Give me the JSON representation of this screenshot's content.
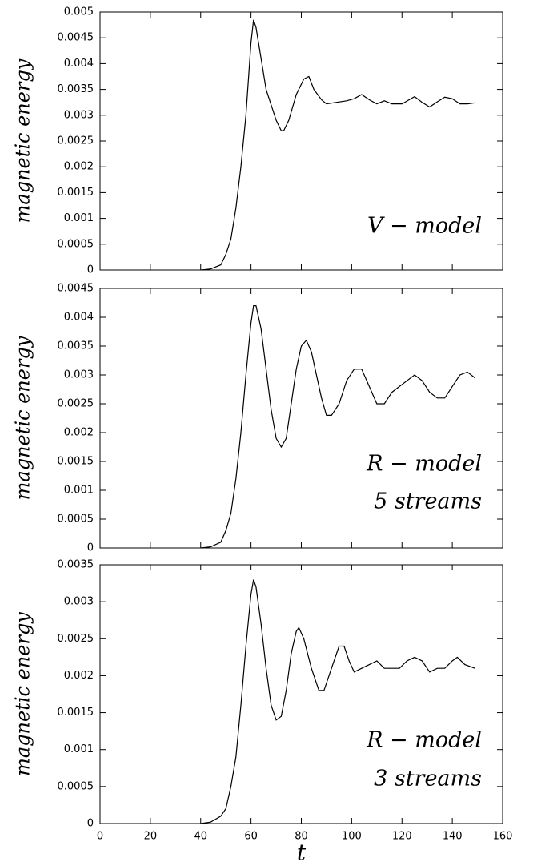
{
  "chart_data": [
    {
      "type": "line",
      "ylabel": "magnetic energy",
      "annotations": [
        "V − model"
      ],
      "xlim": [
        0,
        160
      ],
      "xticks": [
        0,
        20,
        40,
        60,
        80,
        100,
        120,
        140,
        160
      ],
      "ylim": [
        0,
        0.005
      ],
      "yticks": [
        0,
        0.0005,
        0.001,
        0.0015,
        0.002,
        0.0025,
        0.003,
        0.0035,
        0.004,
        0.0045,
        0.005
      ],
      "x": [
        40,
        44,
        48,
        50,
        52,
        54,
        56,
        58,
        60,
        61,
        62,
        64,
        66,
        68,
        70,
        72,
        73,
        75,
        78,
        81,
        83,
        85,
        88,
        90,
        94,
        98,
        101,
        104,
        107,
        110,
        113,
        116,
        120,
        125,
        128,
        131,
        134,
        137,
        140,
        143,
        146,
        149
      ],
      "series": [
        {
          "color": "#000000",
          "values": [
            0,
            2e-05,
            0.0001,
            0.0003,
            0.0006,
            0.0012,
            0.002,
            0.003,
            0.0044,
            0.00485,
            0.0047,
            0.0041,
            0.0035,
            0.0032,
            0.0029,
            0.0027,
            0.0027,
            0.0029,
            0.0034,
            0.0037,
            0.00375,
            0.0035,
            0.0033,
            0.00322,
            0.00325,
            0.00328,
            0.00332,
            0.0034,
            0.0033,
            0.00322,
            0.00328,
            0.00322,
            0.00322,
            0.00336,
            0.00325,
            0.00316,
            0.00326,
            0.00335,
            0.00332,
            0.00322,
            0.00322,
            0.00324
          ]
        }
      ]
    },
    {
      "type": "line",
      "ylabel": "magnetic energy",
      "annotations": [
        "R − model",
        "5 streams"
      ],
      "xlim": [
        0,
        160
      ],
      "xticks": [
        0,
        20,
        40,
        60,
        80,
        100,
        120,
        140,
        160
      ],
      "ylim": [
        0,
        0.0045
      ],
      "yticks": [
        0,
        0.0005,
        0.001,
        0.0015,
        0.002,
        0.0025,
        0.003,
        0.0035,
        0.004,
        0.0045
      ],
      "x": [
        40,
        44,
        48,
        50,
        52,
        54,
        56,
        58,
        60,
        61,
        62,
        64,
        66,
        68,
        70,
        72,
        74,
        76,
        78,
        80,
        82,
        84,
        86,
        88,
        90,
        92,
        95,
        98,
        101,
        104,
        107,
        110,
        113,
        116,
        119,
        122,
        125,
        128,
        131,
        134,
        137,
        140,
        143,
        146,
        149
      ],
      "series": [
        {
          "color": "#000000",
          "values": [
            0,
            2e-05,
            0.0001,
            0.0003,
            0.0006,
            0.0012,
            0.002,
            0.003,
            0.0039,
            0.0042,
            0.0042,
            0.0038,
            0.0031,
            0.0024,
            0.0019,
            0.00175,
            0.0019,
            0.0025,
            0.0031,
            0.0035,
            0.0036,
            0.0034,
            0.003,
            0.0026,
            0.0023,
            0.0023,
            0.0025,
            0.0029,
            0.0031,
            0.0031,
            0.0028,
            0.0025,
            0.0025,
            0.0027,
            0.0028,
            0.0029,
            0.003,
            0.0029,
            0.0027,
            0.0026,
            0.0026,
            0.0028,
            0.003,
            0.00305,
            0.00295
          ]
        }
      ]
    },
    {
      "type": "line",
      "ylabel": "magnetic energy",
      "xlabel": "t",
      "annotations": [
        "R − model",
        "3 streams"
      ],
      "xlim": [
        0,
        160
      ],
      "xticks": [
        0,
        20,
        40,
        60,
        80,
        100,
        120,
        140,
        160
      ],
      "ylim": [
        0,
        0.0035
      ],
      "yticks": [
        0,
        0.0005,
        0.001,
        0.0015,
        0.002,
        0.0025,
        0.003,
        0.0035
      ],
      "x": [
        40,
        44,
        48,
        50,
        52,
        54,
        56,
        58,
        60,
        61,
        62,
        64,
        66,
        68,
        70,
        72,
        74,
        76,
        78,
        79,
        81,
        84,
        87,
        89,
        92,
        95,
        97,
        99,
        101,
        104,
        107,
        110,
        113,
        116,
        119,
        122,
        125,
        128,
        131,
        134,
        137,
        140,
        142,
        145,
        149
      ],
      "series": [
        {
          "color": "#000000",
          "values": [
            0,
            2e-05,
            0.0001,
            0.0002,
            0.0005,
            0.0009,
            0.0016,
            0.0024,
            0.0031,
            0.0033,
            0.0032,
            0.0027,
            0.0021,
            0.0016,
            0.0014,
            0.00145,
            0.0018,
            0.0023,
            0.0026,
            0.00265,
            0.0025,
            0.0021,
            0.0018,
            0.0018,
            0.0021,
            0.0024,
            0.0024,
            0.0022,
            0.00205,
            0.0021,
            0.00215,
            0.0022,
            0.0021,
            0.0021,
            0.0021,
            0.0022,
            0.00225,
            0.0022,
            0.00205,
            0.0021,
            0.0021,
            0.0022,
            0.00225,
            0.00215,
            0.0021
          ]
        }
      ]
    }
  ]
}
